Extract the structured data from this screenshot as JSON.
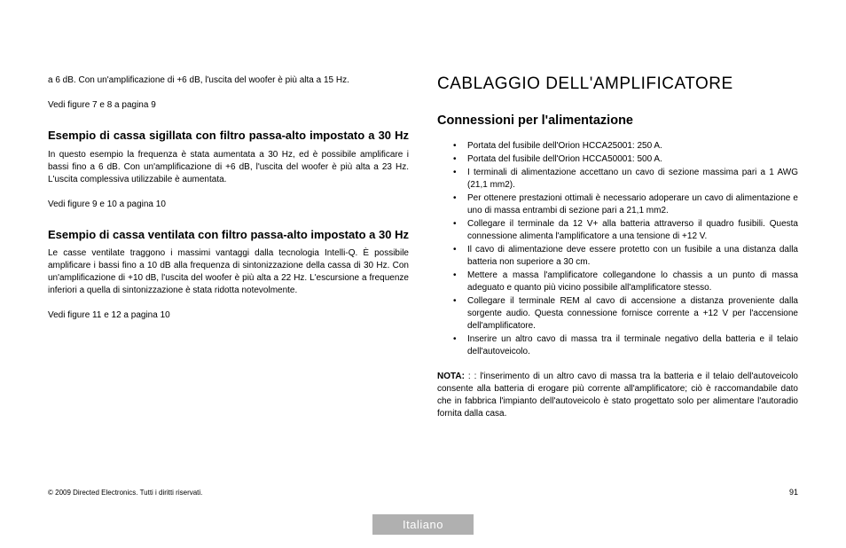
{
  "leftCol": {
    "intro": "a 6 dB. Con un'amplificazione di +6 dB, l'uscita del woofer è più alta a 15 Hz.",
    "ref1": "Vedi figure 7 e 8 a pagina 9",
    "h3a": "Esempio di cassa sigillata con filtro passa-alto impostato a 30 Hz",
    "p3a": "In questo esempio la frequenza è stata aumentata a 30 Hz, ed è possibile amplificare i bassi fino a 6 dB. Con un'amplificazione di +6 dB, l'uscita del woofer è più alta a 23 Hz. L'uscita complessiva utilizzabile è aumentata.",
    "ref2": "Vedi figure 9 e 10 a pagina 10",
    "h3b": "Esempio di cassa ventilata con filtro passa-alto impostato a 30 Hz",
    "p3b": "Le casse ventilate traggono i massimi vantaggi dalla tecnologia Intelli-Q. È possibile amplificare i bassi fino a 10 dB alla frequenza di sintonizzazione della cassa di 30 Hz. Con un'amplificazione di +10 dB, l'uscita del woofer è più alta a 22 Hz. L'escursione a frequenze inferiori a quella di sintonizzazione è stata ridotta notevolmente.",
    "ref3": "Vedi figure 11 e 12 a pagina 10"
  },
  "rightCol": {
    "h1": "CABLAGGIO DELL'AMPLIFICATORE",
    "h2": "Connessioni per l'alimentazione",
    "bullets": [
      "Portata del fusibile dell'Orion HCCA25001: 250 A.",
      "Portata del fusibile dell'Orion HCCA50001: 500 A.",
      "I terminali di alimentazione accettano un cavo di sezione massima pari a 1 AWG (21,1 mm2).",
      "Per ottenere prestazioni ottimali è necessario adoperare un cavo di alimentazione e uno di massa entrambi di sezione pari a 21,1 mm2.",
      "Collegare il terminale da 12 V+ alla batteria attraverso il quadro fusibili. Questa connessione alimenta l'amplificatore a una tensione di +12 V.",
      "Il cavo di alimentazione deve essere protetto con un fusibile a una distanza dalla batteria non superiore a 30 cm.",
      "Mettere a massa l'amplificatore collegandone lo chassis a un punto di massa adeguato e quanto più vicino possibile all'amplificatore stesso.",
      "Collegare il terminale REM al cavo di accensione a distanza proveniente dalla sorgente audio. Questa connessione fornisce corrente a +12 V per l'accensione dell'amplificatore.",
      "Inserire un altro cavo di massa tra il terminale negativo della batteria e il telaio dell'autoveicolo."
    ],
    "notaLabel": "NOTA:",
    "nota": " : : l'inserimento di un altro cavo di massa tra la batteria e il telaio dell'autoveicolo consente alla batteria di erogare più corrente all'amplificatore; ciò è raccomandabile dato che in fabbrica l'impianto dell'autoveicolo è stato progettato solo per alimentare l'autoradio fornita dalla casa."
  },
  "footer": {
    "left": "© 2009 Directed Electronics. Tutti i diritti riservati.",
    "pageNum": "91",
    "lang": "Italiano"
  }
}
